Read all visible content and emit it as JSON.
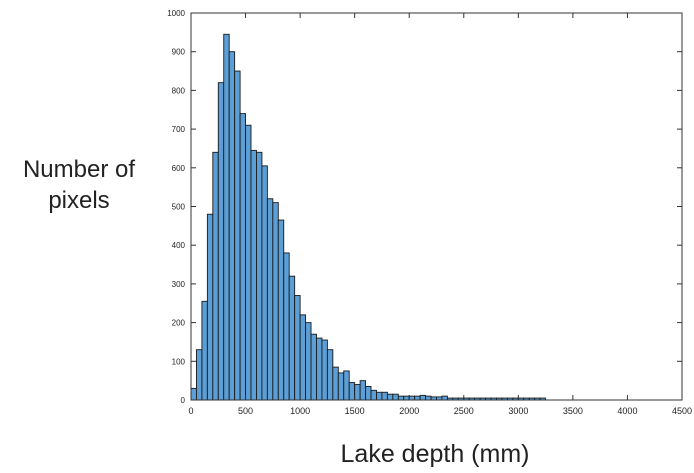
{
  "chart_data": {
    "type": "bar",
    "title": "",
    "xlabel": "Lake depth (mm)",
    "ylabel": [
      "Number of",
      "pixels"
    ],
    "xlim": [
      0,
      4500
    ],
    "ylim": [
      0,
      1000
    ],
    "x_ticks": [
      0,
      500,
      1000,
      1500,
      2000,
      2500,
      3000,
      3500,
      4000,
      4500
    ],
    "y_ticks": [
      0,
      100,
      200,
      300,
      400,
      500,
      600,
      700,
      800,
      900,
      1000
    ],
    "bin_width": 50,
    "bin_starts": [
      0,
      50,
      100,
      150,
      200,
      250,
      300,
      350,
      400,
      450,
      500,
      550,
      600,
      650,
      700,
      750,
      800,
      850,
      900,
      950,
      1000,
      1050,
      1100,
      1150,
      1200,
      1250,
      1300,
      1350,
      1400,
      1450,
      1500,
      1550,
      1600,
      1650,
      1700,
      1750,
      1800,
      1850,
      1900,
      1950,
      2000,
      2050,
      2100,
      2150,
      2200,
      2250,
      2300,
      2350,
      2400,
      2450,
      2500,
      2550,
      2600,
      2650,
      2700,
      2750,
      2800,
      2850,
      2900,
      2950,
      3000,
      3050,
      3100,
      3150,
      3200,
      3250,
      3300,
      3350,
      3400,
      3450,
      3500,
      3550,
      3600,
      3650,
      3700,
      3750,
      3800,
      3850,
      3900,
      3950,
      4000,
      4050,
      4100,
      4150,
      4200,
      4250,
      4300,
      4350,
      4400,
      4450
    ],
    "values": [
      30,
      130,
      255,
      480,
      640,
      820,
      945,
      900,
      850,
      740,
      710,
      645,
      640,
      605,
      520,
      510,
      465,
      380,
      320,
      270,
      220,
      200,
      170,
      160,
      155,
      130,
      85,
      70,
      75,
      45,
      40,
      50,
      35,
      25,
      20,
      20,
      15,
      15,
      10,
      10,
      10,
      10,
      12,
      10,
      8,
      8,
      10,
      5,
      5,
      5,
      5,
      5,
      5,
      5,
      5,
      5,
      5,
      5,
      5,
      5,
      5,
      5,
      5,
      5,
      5,
      0,
      0,
      0,
      0,
      0,
      0,
      0,
      0,
      0,
      0,
      0,
      0,
      0,
      0,
      0,
      0,
      0,
      0,
      0,
      0,
      0,
      0,
      0,
      0,
      0
    ],
    "bar_color": "#5b9fd6",
    "edge_color": "#1a1a1a",
    "grid": false
  }
}
